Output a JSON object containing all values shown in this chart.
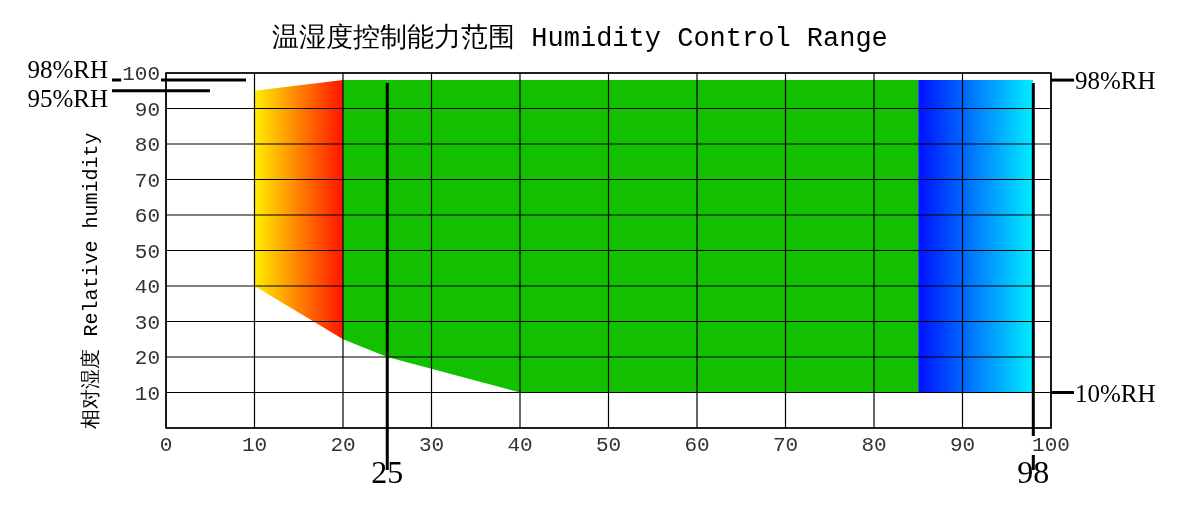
{
  "chart_data": {
    "type": "line",
    "title": "温湿度控制能力范围 Humidity Control Range",
    "ylabel": "相对湿度 Relative humidity",
    "xlim": [
      0,
      100
    ],
    "ylim": [
      0,
      100
    ],
    "xticks": [
      0,
      10,
      20,
      30,
      40,
      50,
      60,
      70,
      80,
      90,
      100
    ],
    "yticks": [
      {
        "value": 0,
        "label": null
      },
      10,
      20,
      30,
      40,
      50,
      60,
      70,
      80,
      90,
      100
    ],
    "grid": true,
    "series": [
      {
        "colors": [
          "#ffee00",
          "#ff1400"
        ],
        "x": [
          10,
          20
        ],
        "values": [
          null,
          null
        ],
        "lower": [
          40,
          25
        ],
        "upper": [
          95,
          98
        ]
      },
      {
        "color": "#12c000",
        "x": [
          20,
          25,
          40,
          85
        ],
        "values": [
          null,
          null,
          null,
          null
        ],
        "lower": [
          25,
          20,
          10,
          10
        ],
        "upper": [
          98,
          98,
          98,
          98
        ]
      },
      {
        "colors": [
          "#0010ff",
          "#00eeff"
        ],
        "x": [
          85,
          98
        ],
        "values": [
          null,
          null
        ],
        "lower": [
          10,
          10
        ],
        "upper": [
          98,
          98
        ]
      }
    ],
    "y2lim": [
      0,
      100
    ],
    "ref_lines": [
      {
        "axis": "x",
        "value": 25,
        "label": "25"
      },
      {
        "axis": "x",
        "value": 98,
        "label": "98"
      },
      {
        "axis": "y",
        "value": 98,
        "label": "98%RH"
      },
      {
        "axis": "y",
        "value": 95,
        "label": "95%RH"
      },
      {
        "axis": "y2",
        "value": 98,
        "label": "98%RH"
      },
      {
        "axis": "y2",
        "value": 10,
        "label": "10%RH"
      }
    ]
  }
}
